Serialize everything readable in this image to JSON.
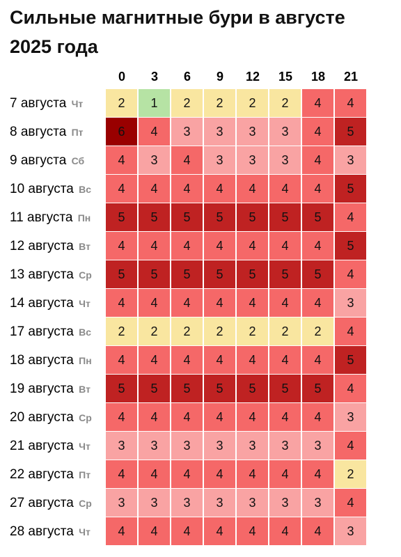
{
  "title": "Сильные магнитные бури в августе 2025 года",
  "chart_data": {
    "type": "heatmap",
    "title": "Сильные магнитные бури в августе 2025 года",
    "columns": [
      "0",
      "3",
      "6",
      "9",
      "12",
      "15",
      "18",
      "21"
    ],
    "rows": [
      {
        "date": "7 августа",
        "dow": "Чт",
        "values": [
          2,
          1,
          2,
          2,
          2,
          2,
          4,
          4
        ]
      },
      {
        "date": "8 августа",
        "dow": "Пт",
        "values": [
          6,
          4,
          3,
          3,
          3,
          3,
          4,
          5
        ]
      },
      {
        "date": "9 августа",
        "dow": "Сб",
        "values": [
          4,
          3,
          4,
          3,
          3,
          3,
          4,
          3
        ]
      },
      {
        "date": "10 августа",
        "dow": "Вс",
        "values": [
          4,
          4,
          4,
          4,
          4,
          4,
          4,
          5
        ]
      },
      {
        "date": "11 августа",
        "dow": "Пн",
        "values": [
          5,
          5,
          5,
          5,
          5,
          5,
          5,
          4
        ]
      },
      {
        "date": "12 августа",
        "dow": "Вт",
        "values": [
          4,
          4,
          4,
          4,
          4,
          4,
          4,
          5
        ]
      },
      {
        "date": "13 августа",
        "dow": "Ср",
        "values": [
          5,
          5,
          5,
          5,
          5,
          5,
          5,
          4
        ]
      },
      {
        "date": "14 августа",
        "dow": "Чт",
        "values": [
          4,
          4,
          4,
          4,
          4,
          4,
          4,
          3
        ]
      },
      {
        "date": "17 августа",
        "dow": "Вс",
        "values": [
          2,
          2,
          2,
          2,
          2,
          2,
          2,
          4
        ]
      },
      {
        "date": "18 августа",
        "dow": "Пн",
        "values": [
          4,
          4,
          4,
          4,
          4,
          4,
          4,
          5
        ]
      },
      {
        "date": "19 августа",
        "dow": "Вт",
        "values": [
          5,
          5,
          5,
          5,
          5,
          5,
          5,
          4
        ]
      },
      {
        "date": "20 августа",
        "dow": "Ср",
        "values": [
          4,
          4,
          4,
          4,
          4,
          4,
          4,
          3
        ]
      },
      {
        "date": "21 августа",
        "dow": "Чт",
        "values": [
          3,
          3,
          3,
          3,
          3,
          3,
          3,
          4
        ]
      },
      {
        "date": "22 августа",
        "dow": "Пт",
        "values": [
          4,
          4,
          4,
          4,
          4,
          4,
          4,
          2
        ]
      },
      {
        "date": "27 августа",
        "dow": "Ср",
        "values": [
          3,
          3,
          3,
          3,
          3,
          3,
          3,
          4
        ]
      },
      {
        "date": "28 августа",
        "dow": "Чт",
        "values": [
          4,
          4,
          4,
          4,
          4,
          4,
          4,
          3
        ]
      }
    ],
    "color_scale": {
      "1": "#b6e3a4",
      "2": "#f9e6a0",
      "3": "#f9a3a3",
      "4": "#f56868",
      "5": "#bf2222",
      "6": "#990000"
    },
    "legend": "none",
    "grid": true
  }
}
